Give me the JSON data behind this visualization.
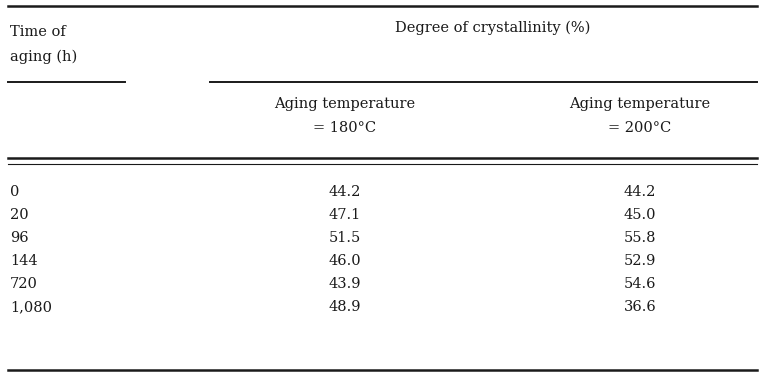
{
  "col1_header_line1": "Time of",
  "col1_header_line2": "aging (h)",
  "col2_header": "Degree of crystallinity (%)",
  "col3_header_line1": "Aging temperature",
  "col3_header_line2": "= 180°C",
  "col4_header_line1": "Aging temperature",
  "col4_header_line2": "= 200°C",
  "rows": [
    [
      "0",
      "44.2",
      "44.2"
    ],
    [
      "20",
      "47.1",
      "45.0"
    ],
    [
      "96",
      "51.5",
      "55.8"
    ],
    [
      "144",
      "46.0",
      "52.9"
    ],
    [
      "720",
      "43.9",
      "54.6"
    ],
    [
      "1,080",
      "48.9",
      "36.6"
    ]
  ],
  "bg_color": "#ffffff",
  "text_color": "#1a1a1a",
  "font_size": 10.5
}
